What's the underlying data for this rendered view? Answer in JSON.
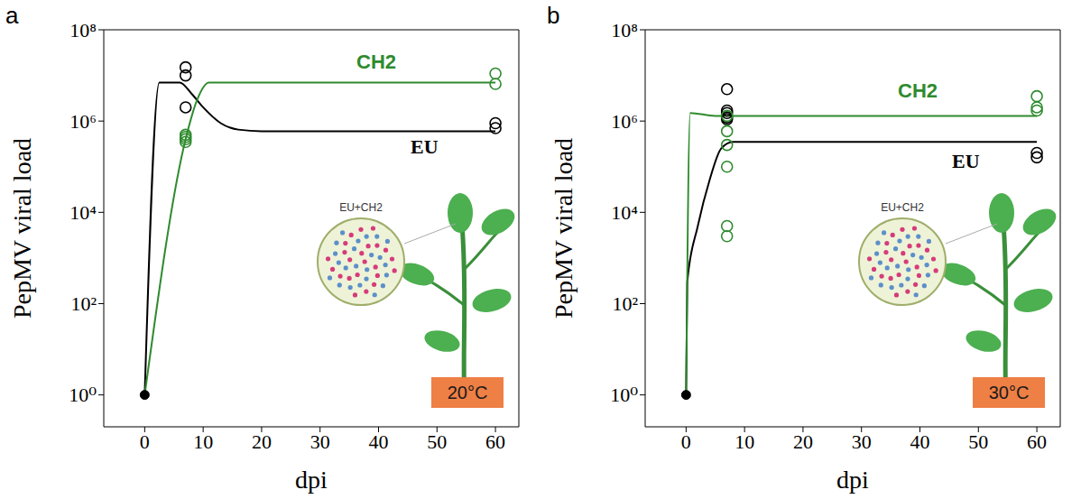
{
  "chart_data": [
    {
      "type": "line",
      "panel": "a",
      "x_label": "dpi",
      "y_label": "PepMV viral load",
      "log": "y",
      "xlim": [
        -7,
        64
      ],
      "xticks": [
        0,
        10,
        20,
        30,
        40,
        50,
        60
      ],
      "ylim": [
        0.2,
        100000000
      ],
      "yticks": [
        {
          "value": 1,
          "label": "10⁰"
        },
        {
          "value": 100,
          "label": "10²"
        },
        {
          "value": 10000,
          "label": "10⁴"
        },
        {
          "value": 1000000,
          "label": "10⁶"
        },
        {
          "value": 100000000,
          "label": "10⁸"
        }
      ],
      "condition": "20°C",
      "inset_label": "EU+CH2",
      "start": {
        "x": 0,
        "value": 1,
        "color": "#000000"
      },
      "series": [
        {
          "name": "EU",
          "color": "#000000",
          "marker": "open_circle",
          "x": [
            0,
            2.5,
            6,
            8,
            10,
            13,
            16,
            20,
            60
          ],
          "values": [
            1,
            7000000,
            7000000,
            4000000,
            2000000,
            900000,
            650000,
            600000,
            600000
          ],
          "points": {
            "x": [
              7,
              7,
              7,
              60,
              60
            ],
            "values": [
              15000000,
              10000000,
              2000000,
              900000,
              700000
            ]
          }
        },
        {
          "name": "CH2",
          "color": "#2e8b2e",
          "marker": "open_circle",
          "x": [
            0,
            7,
            9,
            11,
            60
          ],
          "values": [
            1,
            400000,
            3000000,
            7000000,
            7000000
          ],
          "points": {
            "x": [
              7,
              7,
              7,
              7,
              60,
              60
            ],
            "values": [
              500000,
              450000,
              400000,
              350000,
              11000000,
              6500000
            ]
          }
        }
      ]
    },
    {
      "type": "line",
      "panel": "b",
      "x_label": "dpi",
      "y_label": "PepMV viral load",
      "log": "y",
      "xlim": [
        -7,
        64
      ],
      "xticks": [
        0,
        10,
        20,
        30,
        40,
        50,
        60
      ],
      "ylim": [
        0.2,
        100000000
      ],
      "yticks": [
        {
          "value": 1,
          "label": "10⁰"
        },
        {
          "value": 100,
          "label": "10²"
        },
        {
          "value": 10000,
          "label": "10⁴"
        },
        {
          "value": 1000000,
          "label": "10⁶"
        },
        {
          "value": 100000000,
          "label": "10⁸"
        }
      ],
      "condition": "30°C",
      "inset_label": "EU+CH2",
      "start": {
        "x": 0,
        "value": 1,
        "color": "#000000"
      },
      "series": [
        {
          "name": "EU",
          "color": "#000000",
          "marker": "open_circle",
          "x": [
            0,
            0.2,
            2,
            4,
            6,
            8,
            60
          ],
          "values": [
            1,
            300,
            5000,
            50000,
            250000,
            350000,
            350000
          ],
          "points": {
            "x": [
              7,
              7,
              7,
              7,
              7,
              60,
              60
            ],
            "values": [
              5000000,
              1700000,
              1500000,
              1200000,
              1100000,
              200000,
              160000
            ]
          }
        },
        {
          "name": "CH2",
          "color": "#2e8b2e",
          "marker": "open_circle",
          "x": [
            0,
            0.7,
            5,
            60
          ],
          "values": [
            1,
            1500000,
            1300000,
            1300000
          ],
          "points": {
            "x": [
              7,
              7,
              7,
              7,
              7,
              7,
              60,
              60,
              60
            ],
            "values": [
              1300000,
              600000,
              300000,
              100000,
              5000,
              3000,
              3500000,
              2000000,
              1700000
            ]
          }
        }
      ]
    }
  ]
}
